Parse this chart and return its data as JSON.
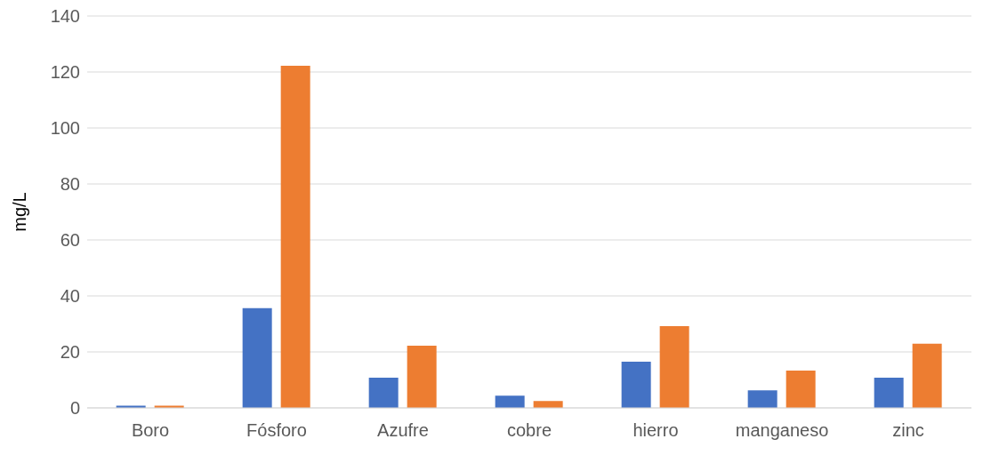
{
  "chart_data": {
    "type": "bar",
    "ylabel": "mg/L",
    "categories": [
      "Boro",
      "Fósforo",
      "Azufre",
      "cobre",
      "hierro",
      "manganeso",
      "zinc"
    ],
    "series": [
      {
        "color": "#4472c4",
        "values": [
          0.8,
          35.6,
          10.8,
          4.4,
          16.5,
          6.3,
          10.8
        ]
      },
      {
        "color": "#ed7d31",
        "values": [
          0.8,
          122.2,
          22.2,
          2.5,
          29.2,
          13.3,
          22.9
        ]
      }
    ],
    "ylim": [
      0,
      140
    ],
    "yticks": [
      0,
      20,
      40,
      60,
      80,
      100,
      120,
      140
    ],
    "grid": "y",
    "legend": false
  }
}
